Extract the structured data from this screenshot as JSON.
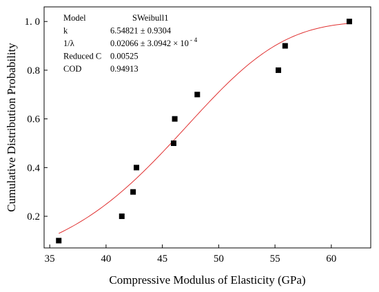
{
  "chart_data": {
    "type": "scatter",
    "xlabel": "Compressive Modulus of Elasticity (GPa)",
    "ylabel": "Cumulative Distribution Probability",
    "xlim": [
      34.5,
      63.5
    ],
    "ylim": [
      0.07,
      1.06
    ],
    "x_ticks": [
      35,
      40,
      45,
      50,
      55,
      60
    ],
    "x_tick_labels": [
      "35",
      "40",
      "45",
      "50",
      "55",
      "60"
    ],
    "y_ticks": [
      0.2,
      0.4,
      0.6,
      0.8,
      1.0
    ],
    "y_tick_labels": [
      "0.2",
      "0.4",
      "0.6",
      "0.8",
      "1. 0"
    ],
    "grid": false,
    "points": [
      {
        "x": 35.8,
        "y": 0.1
      },
      {
        "x": 41.4,
        "y": 0.2
      },
      {
        "x": 42.4,
        "y": 0.3
      },
      {
        "x": 42.7,
        "y": 0.4
      },
      {
        "x": 46.0,
        "y": 0.5
      },
      {
        "x": 46.1,
        "y": 0.6
      },
      {
        "x": 48.1,
        "y": 0.7
      },
      {
        "x": 55.3,
        "y": 0.8
      },
      {
        "x": 55.9,
        "y": 0.9
      },
      {
        "x": 61.6,
        "y": 1.0
      }
    ],
    "fit_curve": {
      "model": "SWeibull1",
      "k": 6.54821,
      "inv_lambda": 0.02066,
      "x_range": [
        35.8,
        61.6
      ],
      "color": "#e03030"
    },
    "marker_color": "#000000",
    "info_box": {
      "rows": [
        {
          "label": "Model",
          "value": "SWeibull1"
        },
        {
          "label": "k",
          "value": "6.54821 ± 0.9304"
        },
        {
          "label": "1/λ",
          "value": "0.02066 ± 3.0942 × 10",
          "exponent": "- 4"
        },
        {
          "label": "Reduced C",
          "value": "0.00525"
        },
        {
          "label": "COD",
          "value": "0.94913"
        }
      ]
    }
  }
}
